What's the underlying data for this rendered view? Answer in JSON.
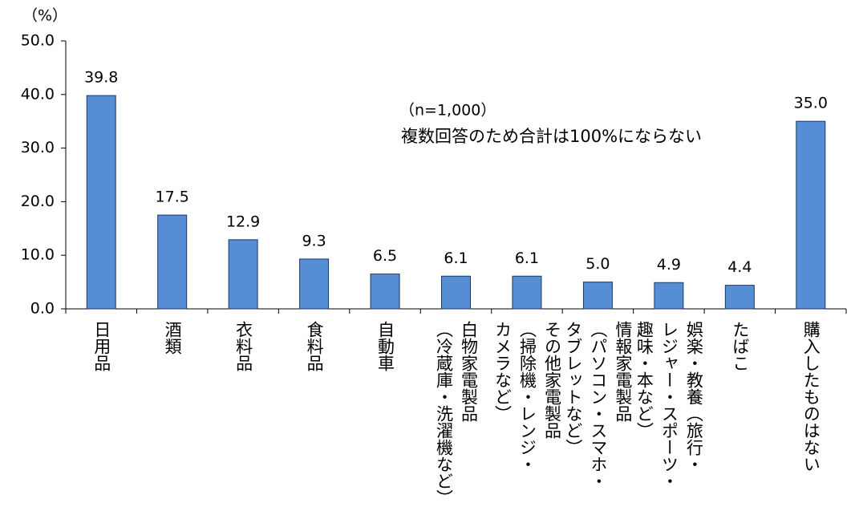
{
  "chart_data": {
    "type": "bar",
    "y_axis_label": "（%）",
    "annotations": [
      "（n=1,000）",
      "複数回答のため合計は100%にならない"
    ],
    "categories": [
      "日用品",
      "酒類",
      "衣料品",
      "食料品",
      "自動車",
      "白物家電製品\n（冷蔵庫・洗濯機など）",
      "その他家電製品\n（掃除機・レンジ・\nカメラなど）",
      "情報家電製品\n（パソコン・スマホ・\nタブレットなど）",
      "娯楽・教養（旅行・\nレジャー・スポーツ・\n趣味・本など）",
      "たばこ",
      "購入したものはない"
    ],
    "values": [
      39.8,
      17.5,
      12.9,
      9.3,
      6.5,
      6.1,
      6.1,
      5.0,
      4.9,
      4.4,
      35.0
    ],
    "value_labels": [
      "39.8",
      "17.5",
      "12.9",
      "9.3",
      "6.5",
      "6.1",
      "6.1",
      "5.0",
      "4.9",
      "4.4",
      "35.0"
    ],
    "color": "#558ed5",
    "ylim": [
      0,
      50
    ],
    "yticks": [
      {
        "value": 0,
        "label": "0.0"
      },
      {
        "value": 10,
        "label": "10.0"
      },
      {
        "value": 20,
        "label": "20.0"
      },
      {
        "value": 30,
        "label": "30.0"
      },
      {
        "value": 40,
        "label": "40.0"
      },
      {
        "value": 50,
        "label": "50.0"
      }
    ],
    "grid": false
  }
}
